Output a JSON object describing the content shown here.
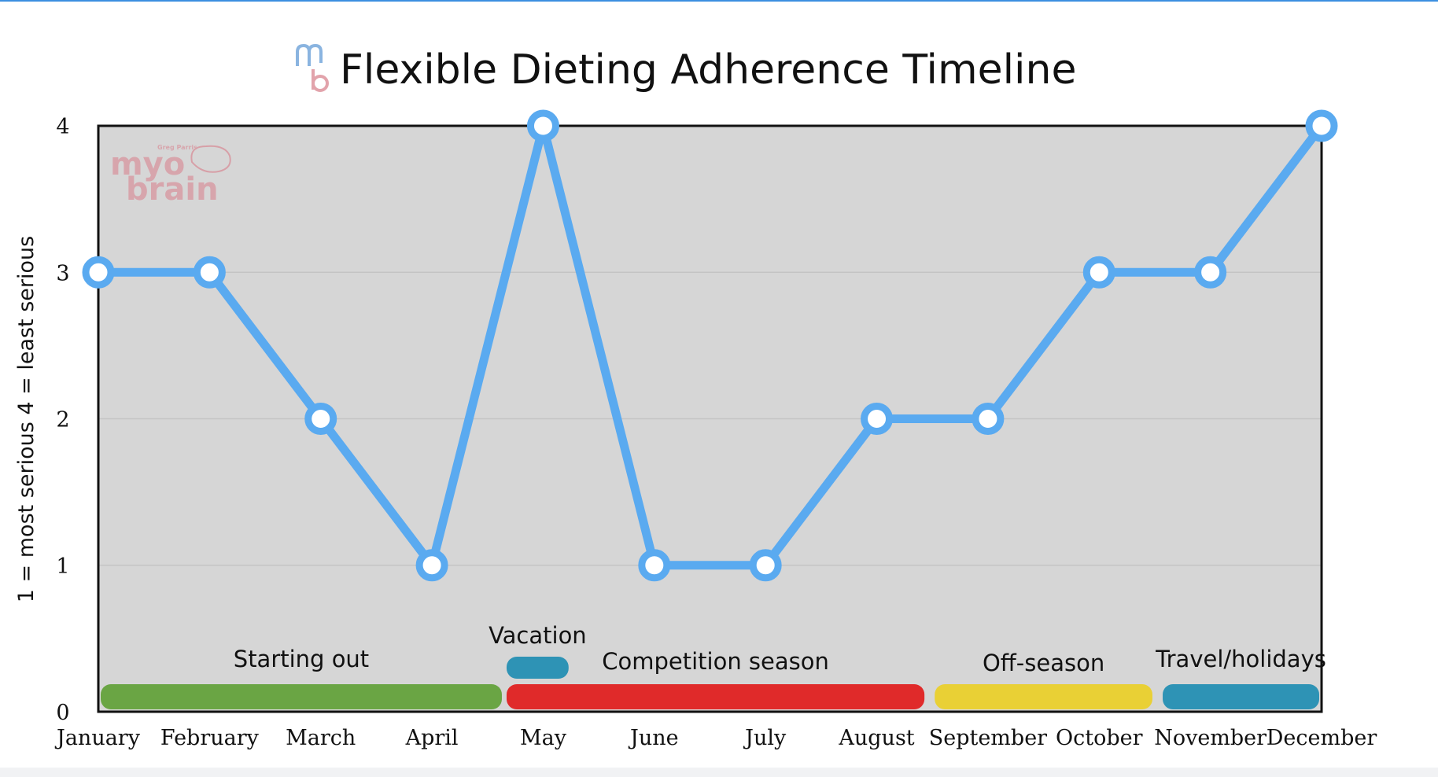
{
  "chart_data": {
    "type": "line",
    "title": "Flexible Dieting Adherence Timeline",
    "ylabel": "1 = most serious 4 = least serious",
    "xlabel": "",
    "categories": [
      "January",
      "February",
      "March",
      "April",
      "May",
      "June",
      "July",
      "August",
      "September",
      "October",
      "November",
      "December"
    ],
    "values": [
      3,
      3,
      2,
      1,
      4,
      1,
      1,
      2,
      2,
      3,
      3,
      4
    ],
    "ylim": [
      0,
      4
    ],
    "yticks": [
      0,
      1,
      2,
      3,
      4
    ],
    "grid": true,
    "line_color": "#5aaaf0",
    "plot_background": "#d6d6d6",
    "phases": [
      {
        "label": "Starting out",
        "start": 0,
        "end": 3.65,
        "row": "low",
        "color": "#6aa544"
      },
      {
        "label": "Vacation",
        "start": 3.65,
        "end": 4.25,
        "row": "high",
        "color": "#2e93b5"
      },
      {
        "label": "Competition season",
        "start": 3.65,
        "end": 7.45,
        "row": "low",
        "color": "#e02a2a"
      },
      {
        "label": "Off-season",
        "start": 7.5,
        "end": 9.5,
        "row": "low",
        "color": "#e9d035"
      },
      {
        "label": "Travel/holidays",
        "start": 9.55,
        "end": 11,
        "row": "low",
        "color": "#2e93b5"
      }
    ]
  },
  "logo": {
    "brand_top": "myo",
    "brand_bottom": "brain",
    "brand_small": "Greg Parris",
    "title_icon": "mb-logo-icon"
  }
}
